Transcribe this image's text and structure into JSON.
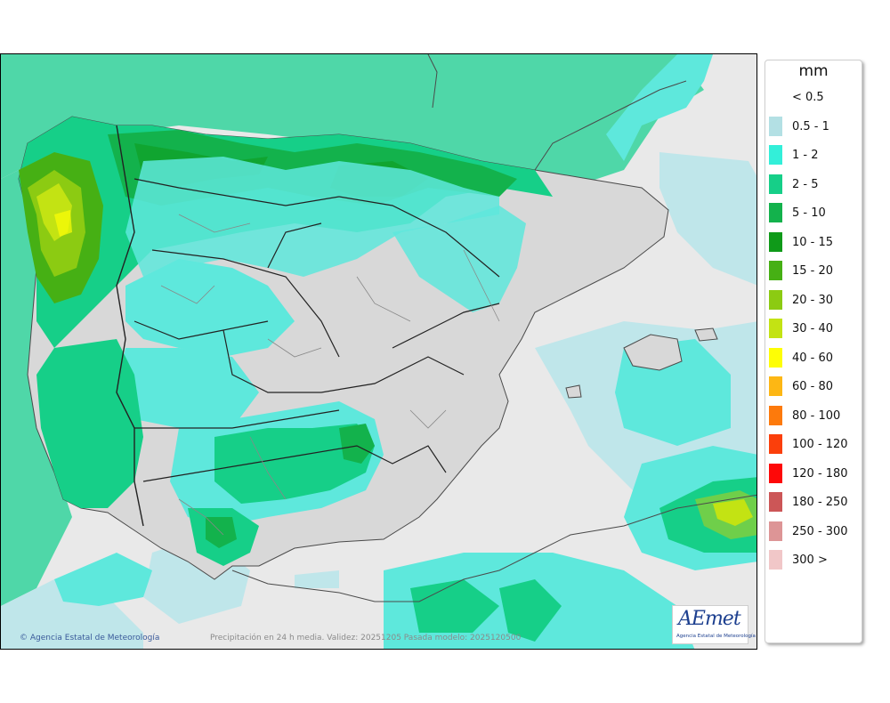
{
  "legend": {
    "unit": "mm",
    "items": [
      {
        "label": "< 0.5",
        "color": ""
      },
      {
        "label": "0.5 - 1",
        "color": "#b3e0e4"
      },
      {
        "label": "1 - 2",
        "color": "#33efd9"
      },
      {
        "label": "2 - 5",
        "color": "#16cf88"
      },
      {
        "label": "5 - 10",
        "color": "#13b24c"
      },
      {
        "label": "10 - 15",
        "color": "#0f9a19"
      },
      {
        "label": "15 - 20",
        "color": "#46b014"
      },
      {
        "label": "20 - 30",
        "color": "#8ccb12"
      },
      {
        "label": "30 - 40",
        "color": "#c3e313"
      },
      {
        "label": "40 - 60",
        "color": "#fefe05"
      },
      {
        "label": "60 - 80",
        "color": "#fdb714"
      },
      {
        "label": "80 - 100",
        "color": "#fd7a0c"
      },
      {
        "label": "100 - 120",
        "color": "#fb3f0b"
      },
      {
        "label": "120 - 180",
        "color": "#fe0808"
      },
      {
        "label": "180 - 250",
        "color": "#cc5657"
      },
      {
        "label": "250 - 300",
        "color": "#dd9596"
      },
      {
        "label": "300 >",
        "color": "#f1c7c8"
      }
    ]
  },
  "footer": {
    "credit": "Agencia Estatal de Meteorología",
    "info": "Precipitación en 24 h media. Validez: 20251205 Pasada modelo: 2025120500"
  },
  "logo": {
    "text": "AEmet",
    "subtitle": "Agencia Estatal de Meteorología"
  }
}
